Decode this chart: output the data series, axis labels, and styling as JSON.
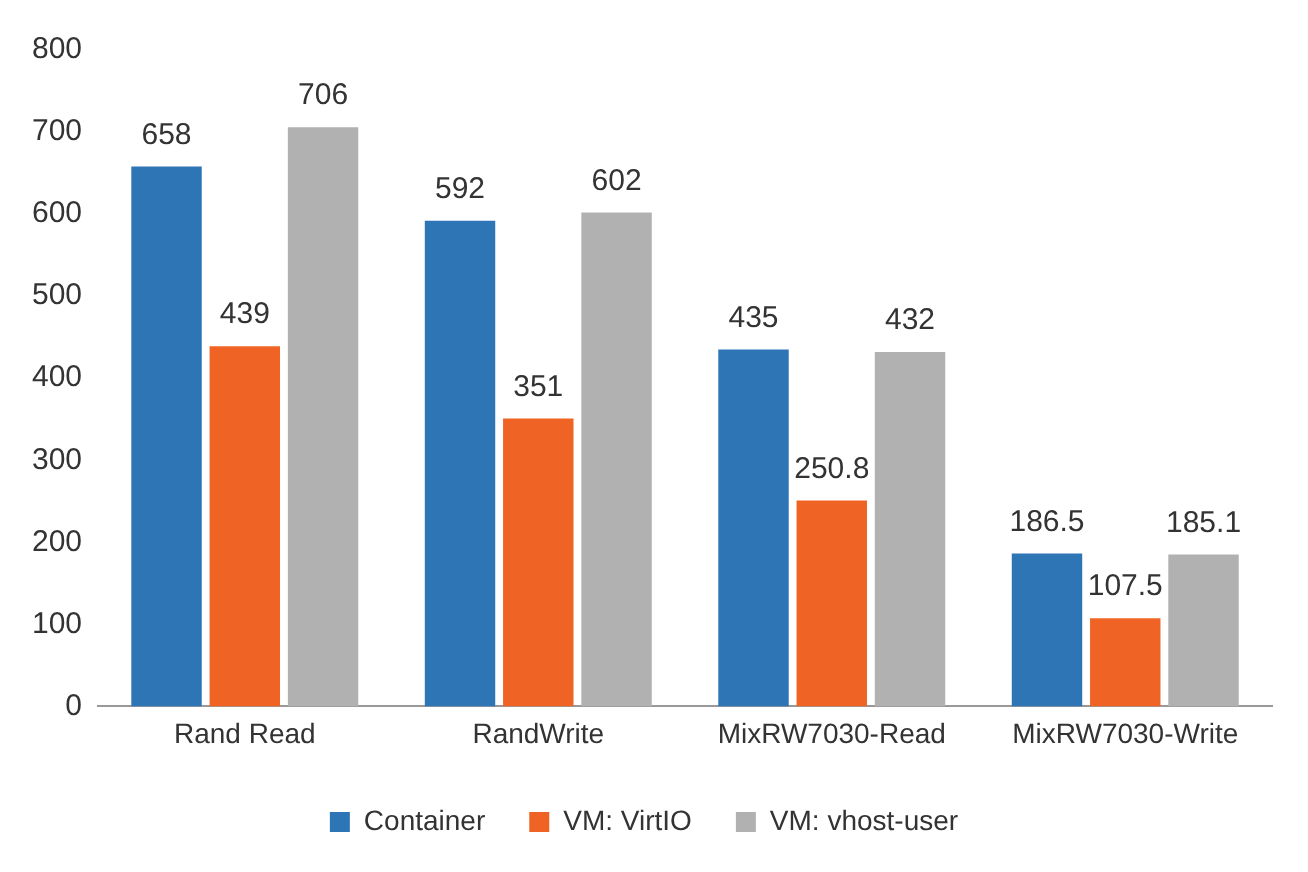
{
  "chart_data": {
    "type": "bar",
    "categories": [
      "Rand Read",
      "RandWrite",
      "MixRW7030-Read",
      "MixRW7030-Write"
    ],
    "series": [
      {
        "name": "Container",
        "color": "#2e75b6",
        "values": [
          658,
          592,
          435,
          186.5
        ]
      },
      {
        "name": "VM: VirtIO",
        "color": "#ef6424",
        "values": [
          439,
          351,
          250.8,
          107.5
        ]
      },
      {
        "name": "VM: vhost-user",
        "color": "#b2b1b2",
        "values": [
          706,
          602,
          432,
          185.1
        ]
      }
    ],
    "ylim": [
      0,
      800
    ],
    "yticks": [
      0,
      100,
      200,
      300,
      400,
      500,
      600,
      700,
      800
    ],
    "data_labels": true,
    "legend": "bottom",
    "grid": false
  }
}
